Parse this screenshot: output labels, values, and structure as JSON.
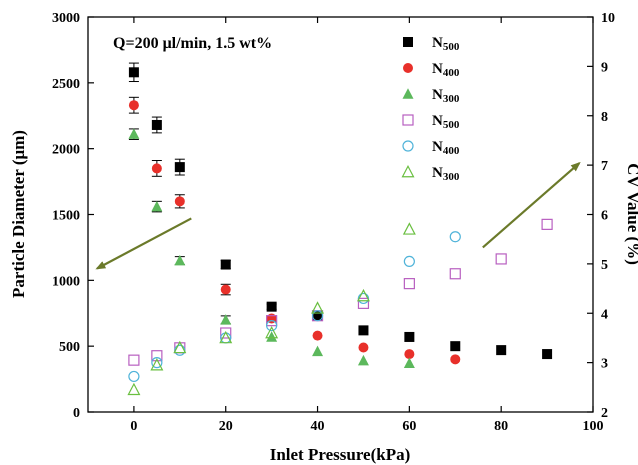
{
  "chart_data": {
    "type": "scatter",
    "annotation": "Q=200 μl/min, 1.5 wt%",
    "xlabel": "Inlet Pressure(kPa)",
    "ylabel_left": "Particle Diameter (μm)",
    "ylabel_right": "CV Value (%)",
    "xlim": [
      -10,
      100
    ],
    "ylim_left": [
      0,
      3000
    ],
    "ylim_right": [
      2,
      10
    ],
    "x_ticks": [
      0,
      20,
      40,
      60,
      80,
      100
    ],
    "y_left_ticks": [
      0,
      500,
      1000,
      1500,
      2000,
      2500,
      3000
    ],
    "y_right_ticks": [
      2,
      3,
      4,
      5,
      6,
      7,
      8,
      9,
      10
    ],
    "grid": false,
    "legend_position": "top-right",
    "series": [
      {
        "name": "N",
        "subscript": "500",
        "axis": "left",
        "marker": "square",
        "filled": true,
        "color": "#000000",
        "x": [
          0,
          5,
          10,
          20,
          30,
          40,
          50,
          60,
          70,
          80,
          90
        ],
        "y": [
          2580,
          2180,
          1860,
          1120,
          800,
          730,
          620,
          570,
          500,
          470,
          440
        ],
        "err": [
          70,
          60,
          60,
          30,
          20,
          0,
          0,
          0,
          0,
          0,
          0
        ]
      },
      {
        "name": "N",
        "subscript": "400",
        "axis": "left",
        "marker": "circle",
        "filled": true,
        "color": "#e8302a",
        "x": [
          0,
          5,
          10,
          20,
          30,
          40,
          50,
          60,
          70
        ],
        "y": [
          2330,
          1850,
          1600,
          930,
          710,
          580,
          490,
          440,
          400
        ],
        "err": [
          60,
          60,
          50,
          40,
          20,
          0,
          0,
          0,
          0
        ]
      },
      {
        "name": "N",
        "subscript": "300",
        "axis": "left",
        "marker": "triangle",
        "filled": true,
        "color": "#5cb85c",
        "x": [
          0,
          5,
          10,
          20,
          30,
          40,
          50,
          60
        ],
        "y": [
          2110,
          1560,
          1150,
          700,
          570,
          460,
          390,
          370
        ],
        "err": [
          40,
          40,
          30,
          30,
          0,
          0,
          0,
          0
        ]
      },
      {
        "name": "N",
        "subscript": "500",
        "axis": "right",
        "marker": "square",
        "filled": false,
        "color": "#b85fc0",
        "x": [
          0,
          5,
          10,
          20,
          30,
          40,
          50,
          60,
          70,
          80,
          90
        ],
        "y": [
          3.05,
          3.14,
          3.3,
          3.6,
          3.85,
          3.95,
          4.2,
          4.6,
          4.8,
          5.1,
          5.8
        ]
      },
      {
        "name": "N",
        "subscript": "400",
        "axis": "right",
        "marker": "circle",
        "filled": false,
        "color": "#4fb3d9",
        "x": [
          0,
          5,
          10,
          20,
          30,
          40,
          50,
          60,
          70
        ],
        "y": [
          2.72,
          3.0,
          3.25,
          3.5,
          3.75,
          3.95,
          4.3,
          5.05,
          5.55
        ]
      },
      {
        "name": "N",
        "subscript": "300",
        "axis": "right",
        "marker": "triangle",
        "filled": false,
        "color": "#6abf40",
        "x": [
          0,
          5,
          10,
          20,
          30,
          40,
          50,
          60
        ],
        "y": [
          2.45,
          2.95,
          3.3,
          3.5,
          3.6,
          4.1,
          4.35,
          5.7
        ]
      }
    ],
    "arrows": [
      {
        "from": [
          12.5,
          1470
        ],
        "to": [
          -8,
          1090
        ],
        "axis": "left",
        "color": "#6b7a2a"
      },
      {
        "from": [
          76,
          1250
        ],
        "to": [
          97,
          1890
        ],
        "axis": "left",
        "color": "#6b7a2a"
      }
    ]
  }
}
